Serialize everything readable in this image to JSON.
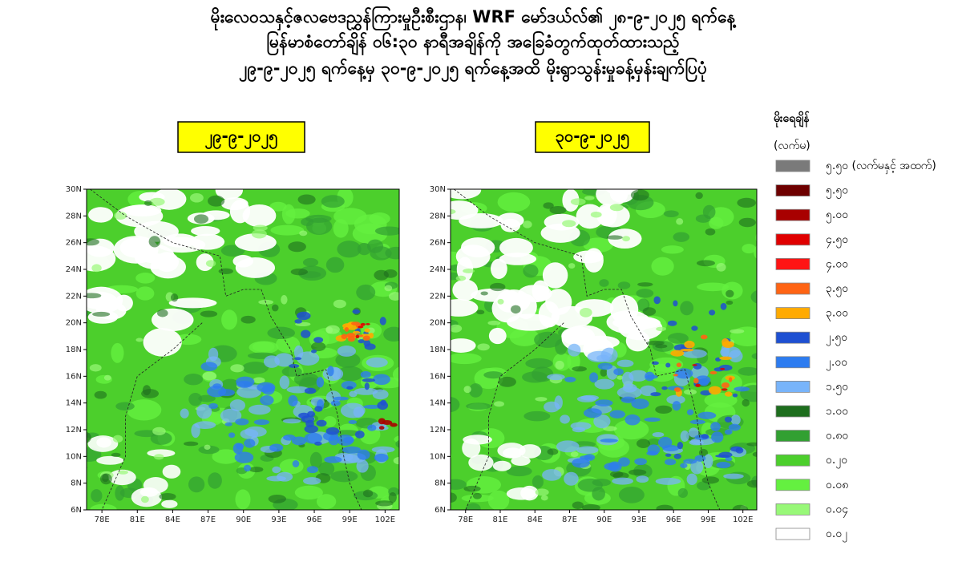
{
  "title_lines": [
    "မိုးလေဝသနှင့်ဇလဗေဒညွှန်ကြားမှုဦးစီးဌာန၊ WRF မော်ဒယ်လ်၏ ၂၈-၉-၂၀၂၅ ရက်နေ့",
    "မြန်မာစံတော်ချိန် ၀၆:၃၀ နာရီအချိန်ကို အခြေခံတွက်ထုတ်ထားသည့်",
    "၂၉-၉-၂၀၂၅ ရက်နေ့မှ ၃၀-၉-၂၀၂၅ ရက်နေ့အထိ မိုးရွာသွန်းမှုခန့်မှန်းချက်ပြပုံ"
  ],
  "panels": [
    {
      "date": "၂၉-၉-၂၀၂၅"
    },
    {
      "date": "၃၀-၉-၂၀၂၅"
    }
  ],
  "map_axes": {
    "lat_ticks": [
      "30N",
      "28N",
      "26N",
      "24N",
      "22N",
      "20N",
      "18N",
      "16N",
      "14N",
      "12N",
      "10N",
      "8N",
      "6N"
    ],
    "lon_ticks": [
      "78E",
      "81E",
      "84E",
      "87E",
      "90E",
      "93E",
      "96E",
      "99E",
      "102E"
    ]
  },
  "legend": {
    "title": "မိုးရေချိန်",
    "unit": "(လက်မ)",
    "items": [
      {
        "label": "၅.၅၀ (လက်မနှင့် အထက်)",
        "color": "#7a7a7a"
      },
      {
        "label": "၅.၅၀",
        "color": "#6e0000"
      },
      {
        "label": "၅.၀၀",
        "color": "#a80000"
      },
      {
        "label": "၄.၅၀",
        "color": "#e00000"
      },
      {
        "label": "၄.၀၀",
        "color": "#ff1414"
      },
      {
        "label": "၃.၅၀",
        "color": "#ff6414"
      },
      {
        "label": "၃.၀၀",
        "color": "#ffaa00"
      },
      {
        "label": "၂.၅၀",
        "color": "#1e50d2"
      },
      {
        "label": "၂.၀၀",
        "color": "#2d7cf0"
      },
      {
        "label": "၁.၅၀",
        "color": "#78b4fa"
      },
      {
        "label": "၁.၀၀",
        "color": "#1e6e1e"
      },
      {
        "label": "၀.၈၀",
        "color": "#32a032"
      },
      {
        "label": "၀.၂၀",
        "color": "#4ccf2c"
      },
      {
        "label": "၀.၀၈",
        "color": "#64f040"
      },
      {
        "label": "၀.၀၄",
        "color": "#98f878"
      },
      {
        "label": "၀.၀၂",
        "color": "#ffffff"
      }
    ]
  }
}
